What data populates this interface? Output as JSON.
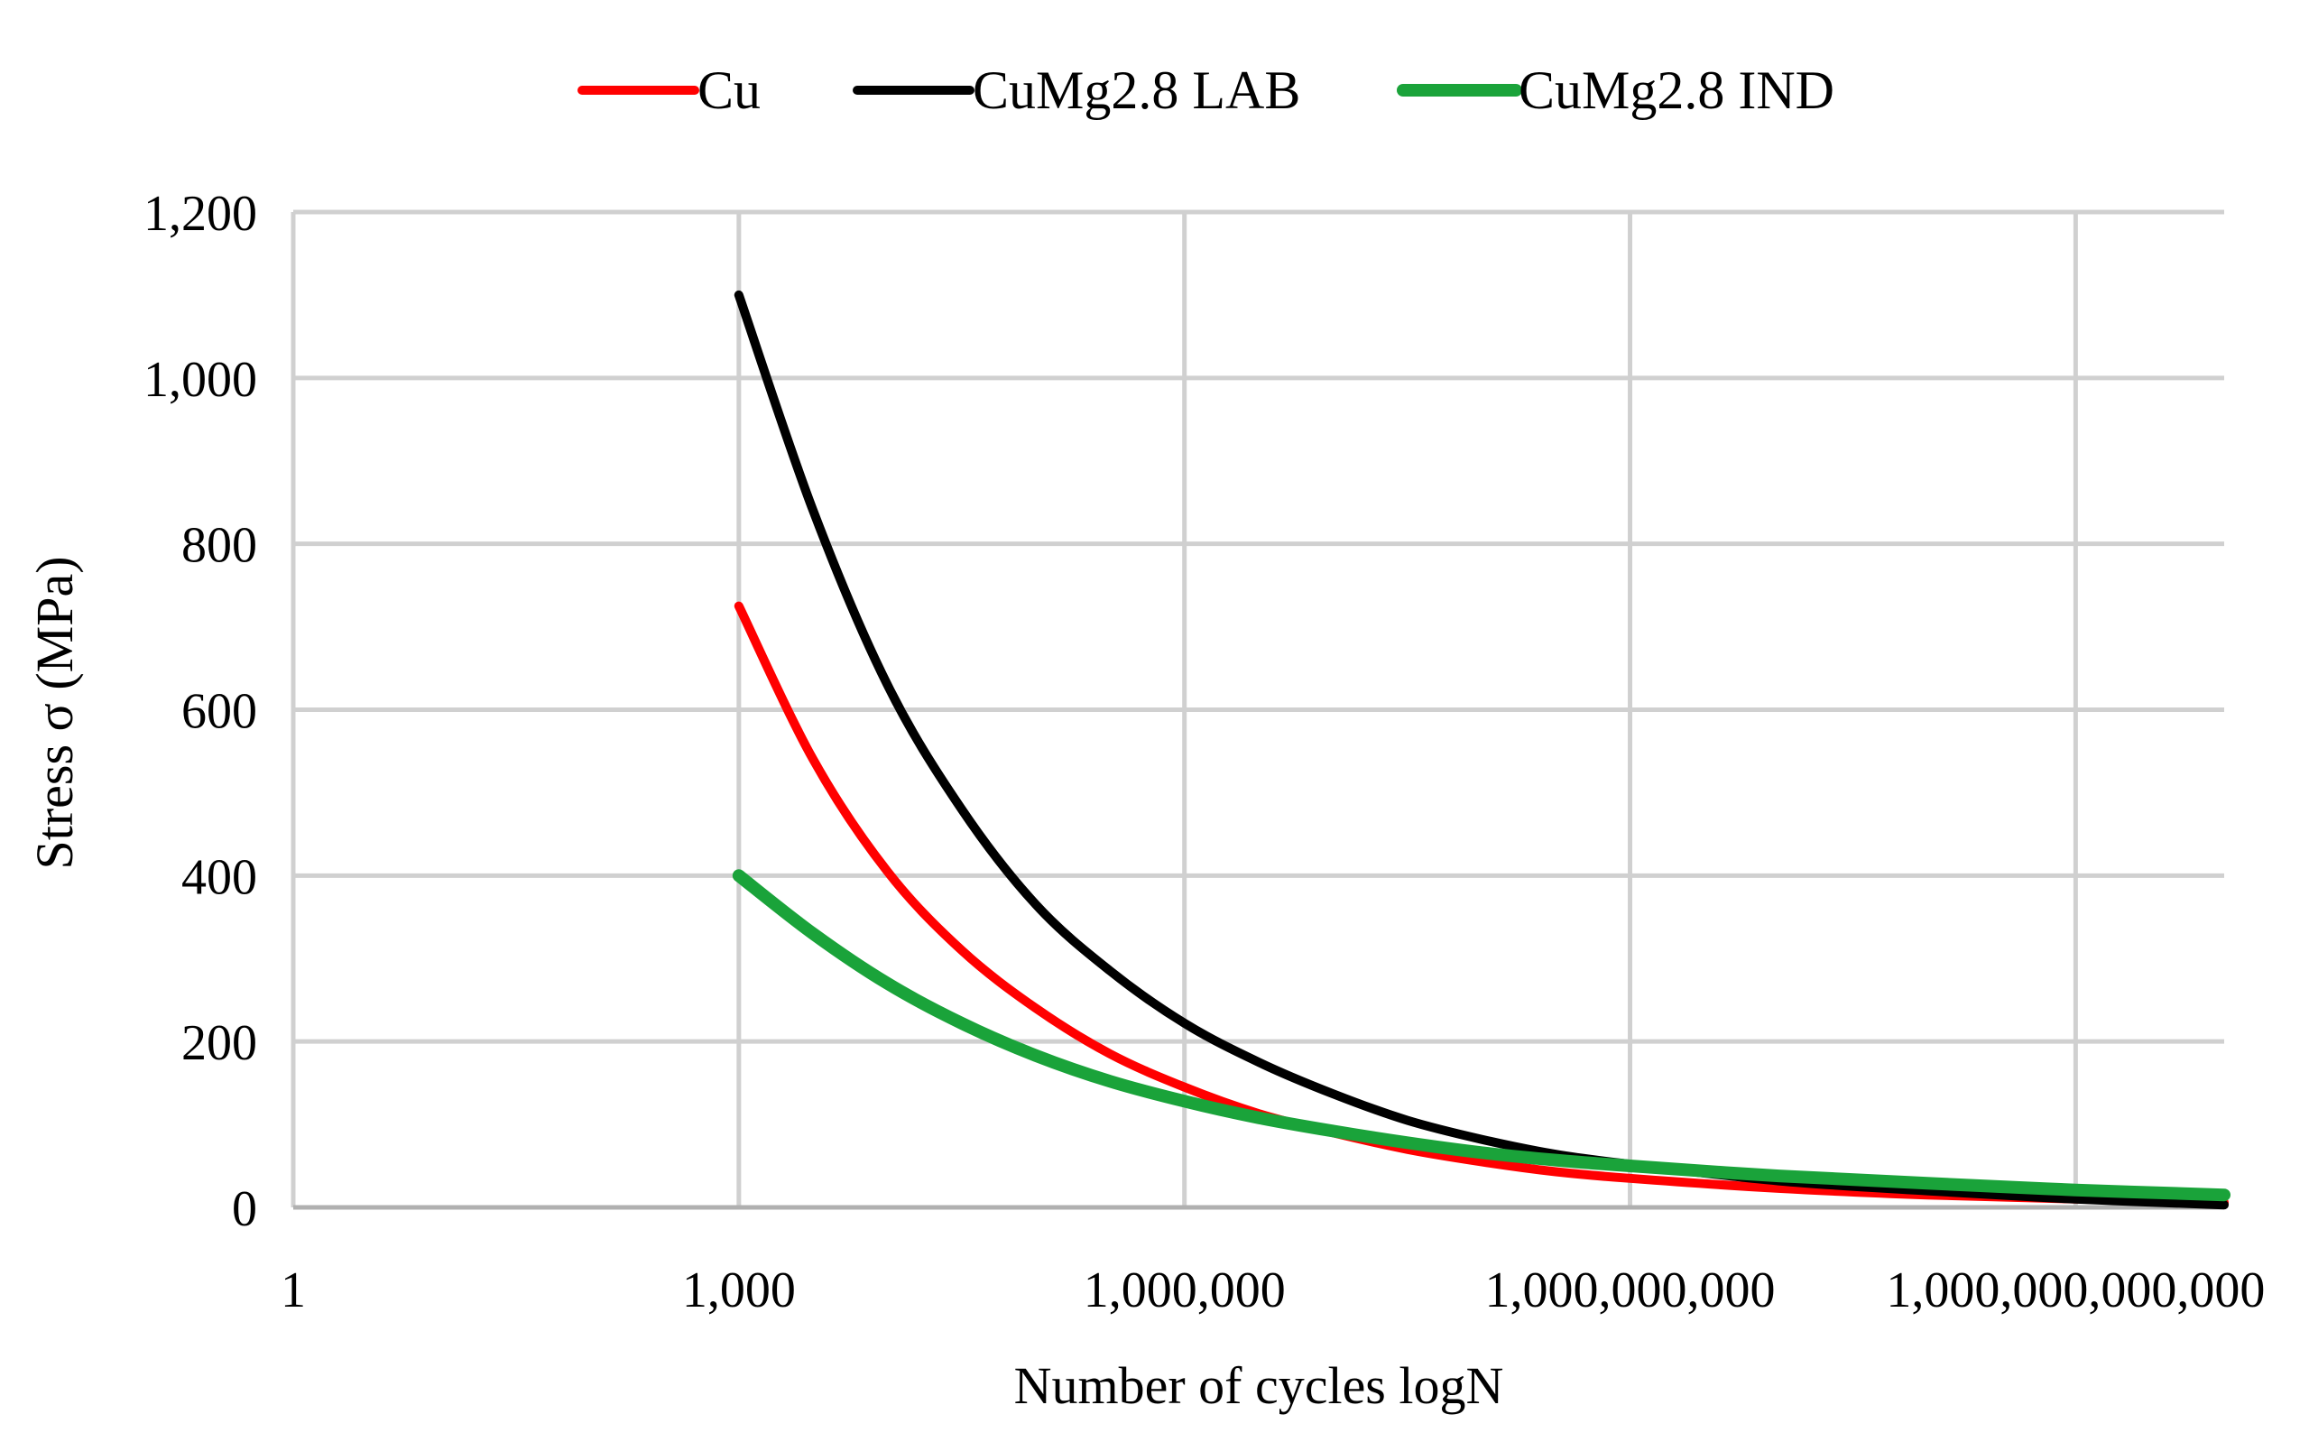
{
  "chart_data": {
    "type": "line",
    "title": "",
    "xlabel": "Number of cycles logN",
    "ylabel": "Stress σ (MPa)",
    "x_scale": "log",
    "x_exponent_range": [
      0,
      13
    ],
    "xticks": [
      {
        "exponent": 0,
        "label": "1"
      },
      {
        "exponent": 3,
        "label": "1,000"
      },
      {
        "exponent": 6,
        "label": "1,000,000"
      },
      {
        "exponent": 9,
        "label": "1,000,000,000"
      },
      {
        "exponent": 12,
        "label": "1,000,000,000,000"
      }
    ],
    "ylim": [
      0,
      1200
    ],
    "yticks": [
      {
        "value": 0,
        "label": "0"
      },
      {
        "value": 200,
        "label": "200"
      },
      {
        "value": 400,
        "label": "400"
      },
      {
        "value": 600,
        "label": "600"
      },
      {
        "value": 800,
        "label": "800"
      },
      {
        "value": 1000,
        "label": "1,000"
      },
      {
        "value": 1200,
        "label": "1,200"
      }
    ],
    "grid": true,
    "legend_position": "top-center",
    "series": [
      {
        "name": "Cu",
        "color": "#ff0000",
        "log_cycles": [
          3,
          3.5,
          4,
          4.5,
          5,
          5.5,
          6,
          6.5,
          7,
          7.5,
          8,
          8.5,
          9,
          10,
          11,
          12,
          13
        ],
        "stress": [
          725,
          540,
          405,
          310,
          240,
          185,
          145,
          113,
          90,
          70,
          55,
          43,
          35,
          23,
          15,
          10,
          6
        ]
      },
      {
        "name": "CuMg2.8 LAB",
        "color": "#000000",
        "log_cycles": [
          3,
          3.5,
          4,
          4.5,
          5,
          5.5,
          6,
          6.5,
          7,
          7.5,
          8,
          8.5,
          9,
          10,
          11,
          12,
          13
        ],
        "stress": [
          1100,
          840,
          630,
          480,
          365,
          285,
          222,
          175,
          137,
          105,
          82,
          64,
          52,
          32,
          20,
          10,
          3
        ]
      },
      {
        "name": "CuMg2.8 IND",
        "color": "#1aa33a",
        "log_cycles": [
          3,
          3.5,
          4,
          4.5,
          5,
          5.5,
          6,
          6.5,
          7,
          7.5,
          8,
          8.5,
          9,
          10,
          11,
          12,
          13
        ],
        "stress": [
          400,
          330,
          270,
          222,
          183,
          152,
          128,
          108,
          92,
          78,
          66,
          57,
          50,
          38,
          29,
          21,
          15
        ]
      }
    ]
  }
}
